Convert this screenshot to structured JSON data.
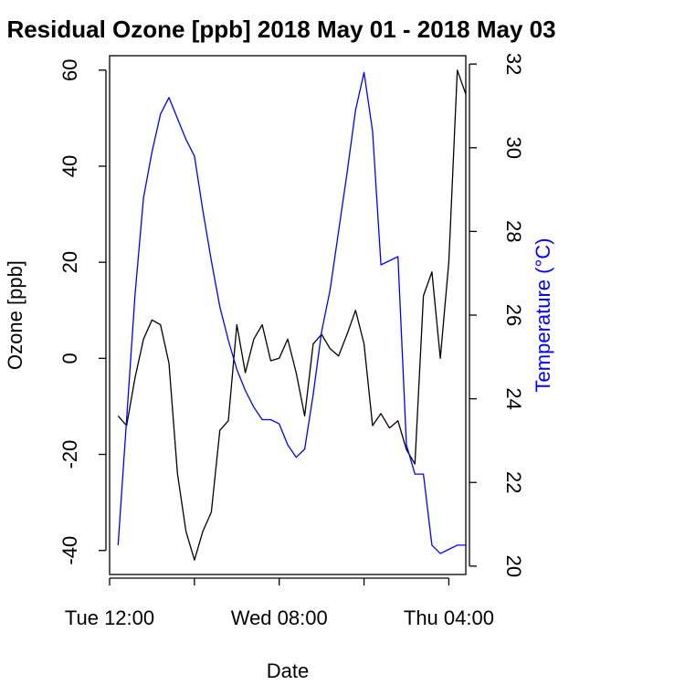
{
  "chart_data": {
    "type": "line",
    "title": "Residual Ozone [ppb] 2018 May 01 - 2018 May 03",
    "xlabel": "Date",
    "ylabel": "Ozone [ppb]",
    "y2label": "Temperature (°C)",
    "xlim": [
      0,
      42
    ],
    "ylim": [
      -45,
      63
    ],
    "y2lim": [
      19.8,
      32.2
    ],
    "x_tick_positions": [
      0,
      20,
      40
    ],
    "x_tick_labels": [
      "Tue 12:00",
      "Wed 08:00",
      "Thu 04:00"
    ],
    "y_ticks": [
      -40,
      -20,
      0,
      20,
      40,
      60
    ],
    "y2_ticks": [
      20,
      22,
      24,
      26,
      28,
      30,
      32
    ],
    "grid": false,
    "colors": {
      "ozone": "#000000",
      "temperature": "#0000ff"
    },
    "series": [
      {
        "name": "Ozone [ppb]",
        "axis": "left",
        "x": [
          1,
          2,
          3,
          4,
          5,
          6,
          7,
          8,
          9,
          10,
          11,
          12,
          13,
          14,
          15,
          16,
          17,
          18,
          19,
          20,
          21,
          22,
          23,
          24,
          25,
          26,
          27,
          28,
          29,
          30,
          31,
          32,
          33,
          34,
          35,
          36,
          37,
          38,
          39,
          40,
          41,
          42
        ],
        "values": [
          -12,
          -14,
          -4,
          4,
          8,
          7,
          -1,
          -24,
          -36,
          -42,
          -36,
          -32,
          -15,
          -13,
          7,
          -3,
          4,
          7,
          -0.5,
          0,
          4,
          -3,
          -12,
          3,
          5,
          2,
          0.5,
          5,
          10,
          3,
          -14,
          -11.5,
          -14.5,
          -13,
          -19,
          -22,
          13,
          18,
          0,
          20,
          60,
          55
        ]
      },
      {
        "name": "Temperature (°C)",
        "axis": "right",
        "x": [
          1,
          2,
          3,
          4,
          5,
          6,
          7,
          8,
          9,
          10,
          11,
          12,
          13,
          14,
          15,
          16,
          17,
          18,
          19,
          20,
          21,
          22,
          23,
          24,
          25,
          26,
          27,
          28,
          29,
          30,
          31,
          32,
          33,
          34,
          35,
          36,
          37,
          38,
          39,
          40,
          41,
          42
        ],
        "values": [
          20.5,
          23.5,
          26.5,
          28.8,
          29.9,
          30.8,
          31.2,
          30.7,
          30.2,
          29.8,
          28.5,
          27.3,
          26.2,
          25.4,
          24.7,
          24.2,
          23.8,
          23.5,
          23.5,
          23.4,
          22.9,
          22.6,
          22.8,
          24.1,
          25.6,
          26.6,
          28.0,
          29.4,
          30.9,
          31.8,
          30.4,
          27.2,
          27.3,
          27.4,
          22.9,
          22.2,
          22.2,
          20.5,
          20.3,
          20.4,
          20.5,
          20.5
        ]
      }
    ]
  }
}
